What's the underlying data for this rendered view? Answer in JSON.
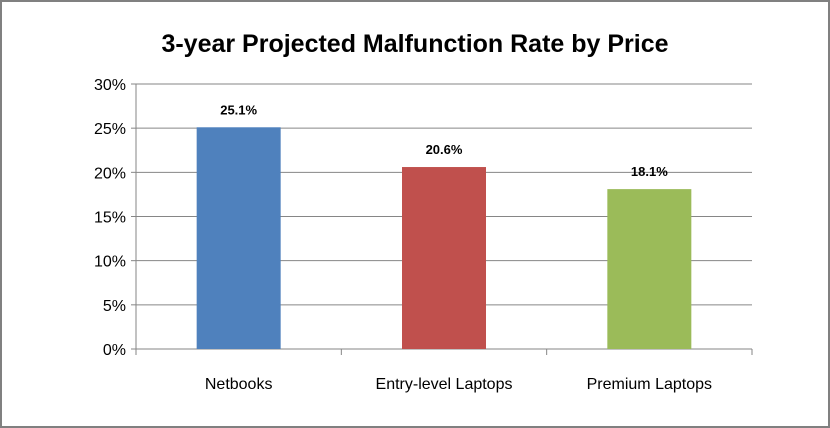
{
  "chart_data": {
    "type": "bar",
    "title": "3-year Projected Malfunction Rate by Price",
    "xlabel": "",
    "ylabel": "",
    "categories": [
      "Netbooks",
      "Entry-level Laptops",
      "Premium Laptops"
    ],
    "values": [
      25.1,
      20.6,
      18.1
    ],
    "data_labels": [
      "25.1%",
      "20.6%",
      "18.1%"
    ],
    "colors": [
      "#4F81BD",
      "#C0504D",
      "#9BBB59"
    ],
    "ylim": [
      0,
      30
    ],
    "yticks": [
      0,
      5,
      10,
      15,
      20,
      25,
      30
    ],
    "ytick_labels": [
      "0%",
      "5%",
      "10%",
      "15%",
      "20%",
      "25%",
      "30%"
    ],
    "grid": true,
    "legend": "none"
  }
}
